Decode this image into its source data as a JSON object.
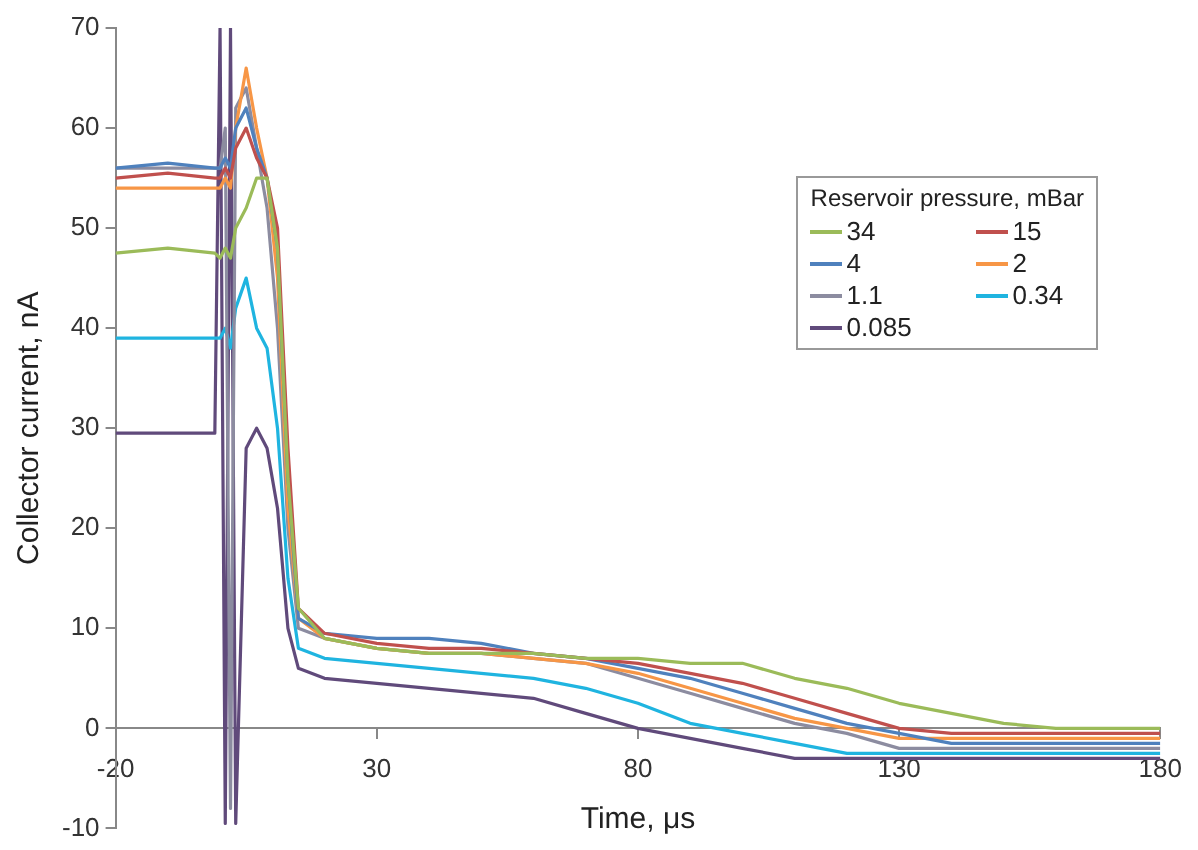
{
  "chart_data": {
    "type": "line",
    "xlabel": "Time, μs",
    "ylabel": "Collector current, nA",
    "legend_title": "Reservoir pressure, mBar",
    "legend": "top right",
    "marker": "none",
    "line_style": "solid",
    "xlim": [
      -20,
      180
    ],
    "xticks": [
      -20,
      30,
      80,
      130,
      180
    ],
    "ylim": [
      -10,
      70
    ],
    "yticks": [
      -10,
      0,
      10,
      20,
      30,
      40,
      50,
      60,
      70
    ],
    "x": [
      -20,
      -10,
      -1,
      0,
      1,
      2,
      3,
      5,
      7,
      9,
      11,
      13,
      15,
      20,
      30,
      40,
      50,
      60,
      70,
      80,
      90,
      100,
      110,
      120,
      130,
      140,
      150,
      160,
      170,
      180
    ],
    "series": [
      {
        "name": "34",
        "color": "#9bbb59",
        "values": [
          47.5,
          48,
          47.5,
          47,
          48,
          47,
          50,
          52,
          55,
          55,
          48,
          25,
          12,
          9,
          8,
          7.5,
          7.5,
          7.5,
          7,
          7,
          6.5,
          6.5,
          5,
          4,
          2.5,
          1.5,
          0.5,
          0,
          0,
          0
        ]
      },
      {
        "name": "15",
        "color": "#c0504d",
        "values": [
          55,
          55.5,
          55,
          55,
          56,
          55,
          58,
          60,
          57,
          55,
          50,
          28,
          12,
          9.5,
          8.5,
          8,
          8,
          7.5,
          7,
          6.5,
          5.5,
          4.5,
          3,
          1.5,
          0,
          -0.5,
          -0.5,
          -0.5,
          -0.5,
          -0.5
        ]
      },
      {
        "name": "4",
        "color": "#4f81bd",
        "values": [
          56,
          56.5,
          56,
          56,
          57,
          56,
          60,
          62,
          58,
          55,
          48,
          25,
          11,
          9.5,
          9,
          9,
          8.5,
          7.5,
          7,
          6,
          5,
          3.5,
          2,
          0.5,
          -0.5,
          -1.5,
          -1.5,
          -1.5,
          -1.5,
          -1.5
        ]
      },
      {
        "name": "2",
        "color": "#f79646",
        "values": [
          54,
          54,
          54,
          54,
          55,
          54,
          60,
          66,
          60,
          55,
          45,
          22,
          11,
          9,
          8,
          7.5,
          7.5,
          7,
          6.5,
          5.5,
          4,
          2.5,
          1,
          0,
          -1,
          -1,
          -1,
          -1,
          -1,
          -1
        ]
      },
      {
        "name": "1.1",
        "color": "#8c8ca0",
        "values": [
          56,
          56,
          56,
          56,
          60,
          -8,
          62,
          64,
          58,
          52,
          40,
          20,
          10,
          9,
          8,
          7.5,
          7.5,
          7,
          6.5,
          5,
          3.5,
          2,
          0.5,
          -0.5,
          -2,
          -2,
          -2,
          -2,
          -2,
          -2
        ]
      },
      {
        "name": "0.34",
        "color": "#1fb4e0",
        "values": [
          39,
          39,
          39,
          39,
          40,
          38,
          42,
          45,
          40,
          38,
          30,
          15,
          8,
          7,
          6.5,
          6,
          5.5,
          5,
          4,
          2.5,
          0.5,
          -0.5,
          -1.5,
          -2.5,
          -2.5,
          -2.5,
          -2.5,
          -2.5,
          -2.5,
          -2.5
        ]
      },
      {
        "name": "0.085",
        "color": "#604a7b",
        "values": [
          29.5,
          29.5,
          29.5,
          70,
          -9.5,
          70,
          -9.5,
          28,
          30,
          28,
          22,
          10,
          6,
          5,
          4.5,
          4,
          3.5,
          3,
          1.5,
          0,
          -1,
          -2,
          -3,
          -3,
          -3,
          -3,
          -3,
          -3,
          -3,
          -3
        ]
      }
    ]
  }
}
